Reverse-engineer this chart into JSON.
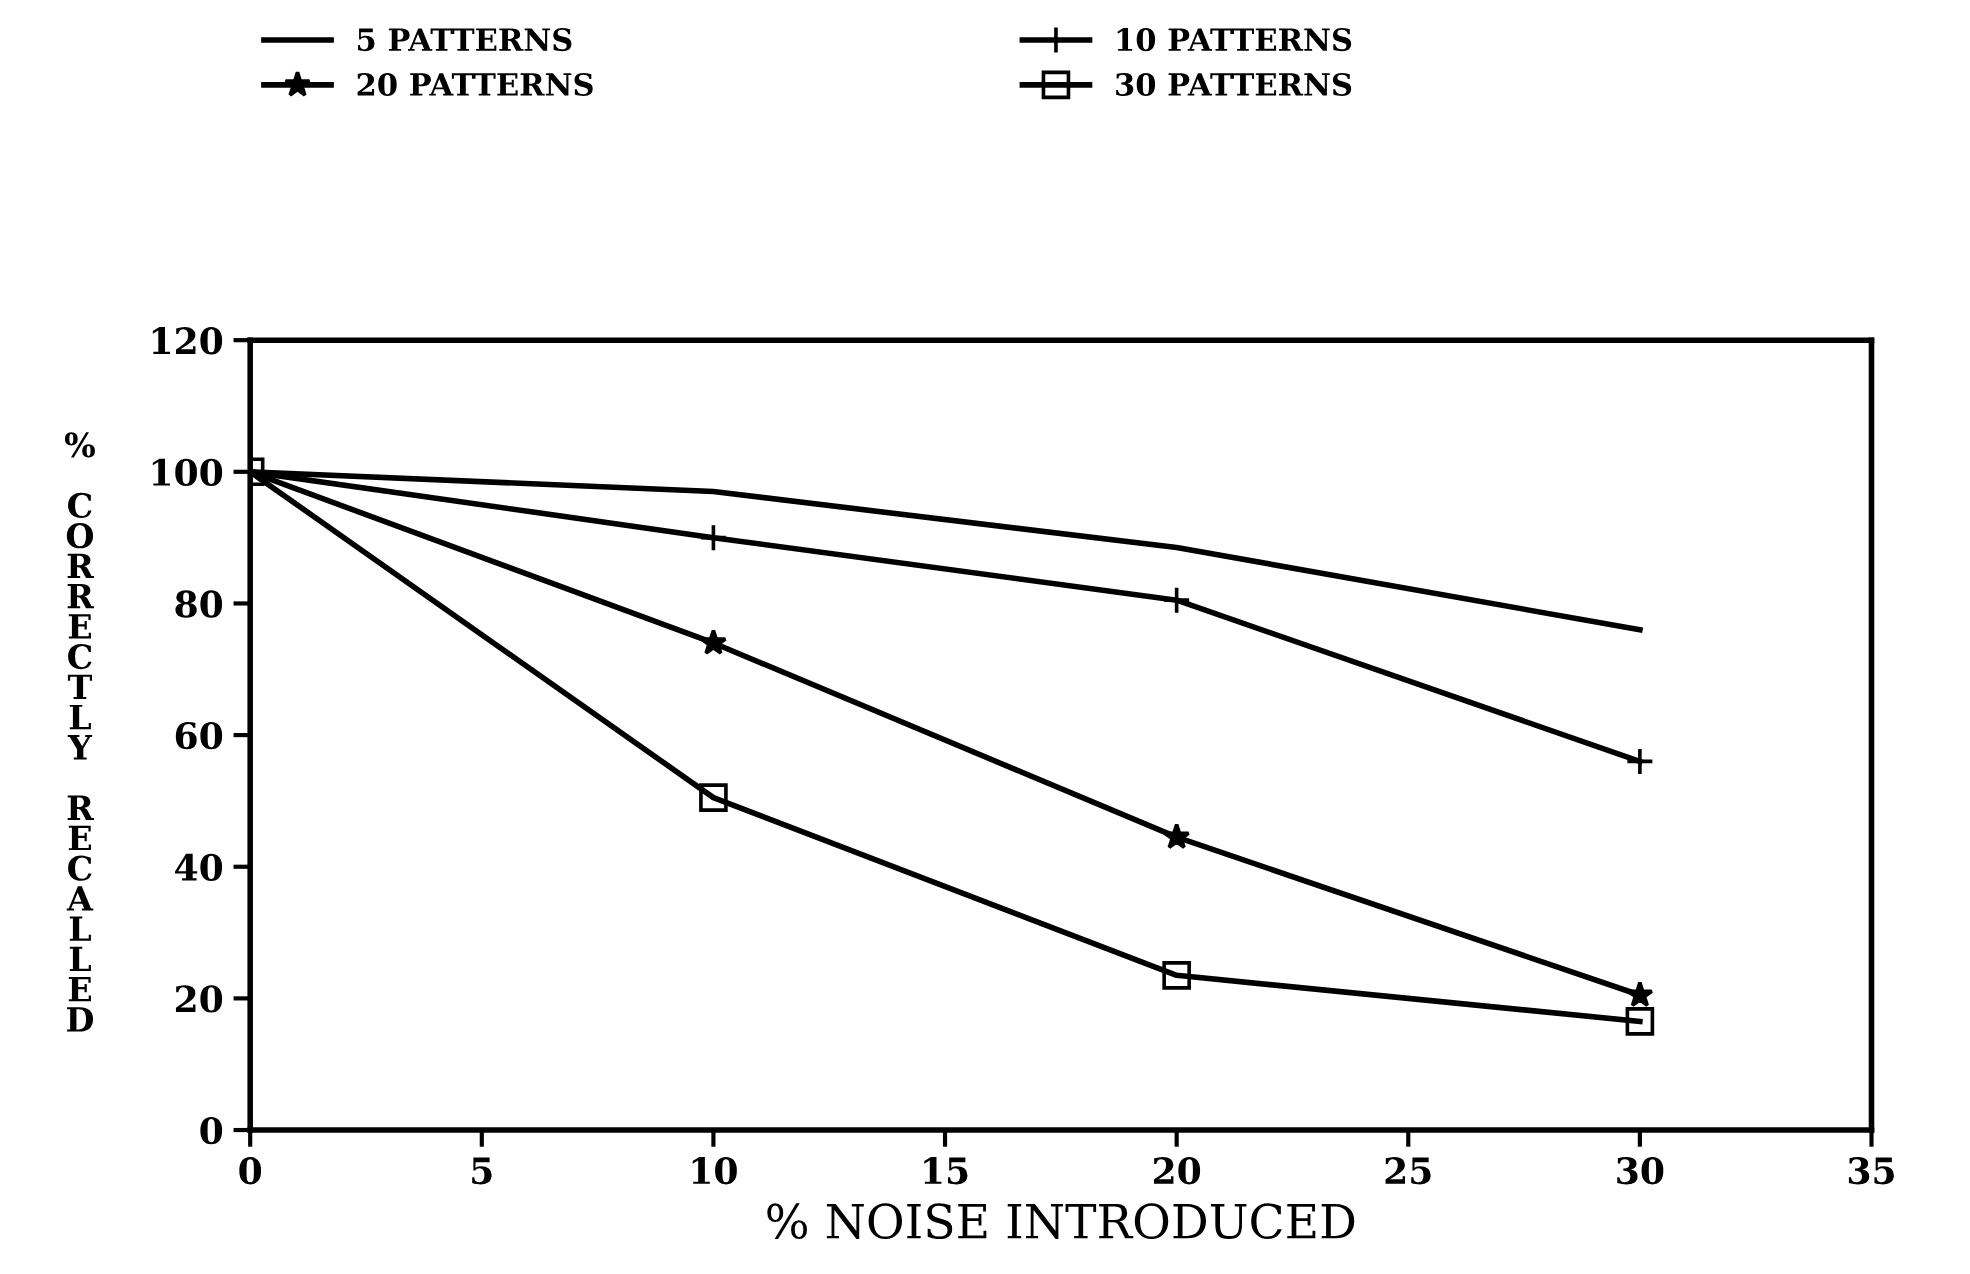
{
  "chart_data": {
    "type": "line",
    "xlabel": "% NOISE INTRODUCED",
    "ylabel": "% CORRECTLY RECALLED",
    "x": [
      0,
      10,
      20,
      30
    ],
    "series": [
      {
        "name": "5 PATTERNS",
        "color": "#000000",
        "marker": "none",
        "values": [
          100,
          97,
          88.5,
          76
        ]
      },
      {
        "name": "10 PATTERNS",
        "color": "#000000",
        "marker": "cross",
        "values": [
          100,
          90,
          80.5,
          56
        ]
      },
      {
        "name": "20 PATTERNS",
        "color": "#000000",
        "marker": "star",
        "values": [
          100,
          74,
          44.5,
          20.5
        ]
      },
      {
        "name": "30 PATTERNS",
        "color": "#000000",
        "marker": "square",
        "values": [
          100,
          50.5,
          23.5,
          16.5
        ]
      }
    ],
    "xlim": [
      0,
      35
    ],
    "xticks": [
      0,
      5,
      10,
      15,
      20,
      25,
      30,
      35
    ],
    "ylim": [
      0,
      120
    ],
    "yticks": [
      0,
      20,
      40,
      60,
      80,
      100,
      120
    ],
    "grid": false,
    "legend": "top left",
    "line_style": "solid"
  }
}
